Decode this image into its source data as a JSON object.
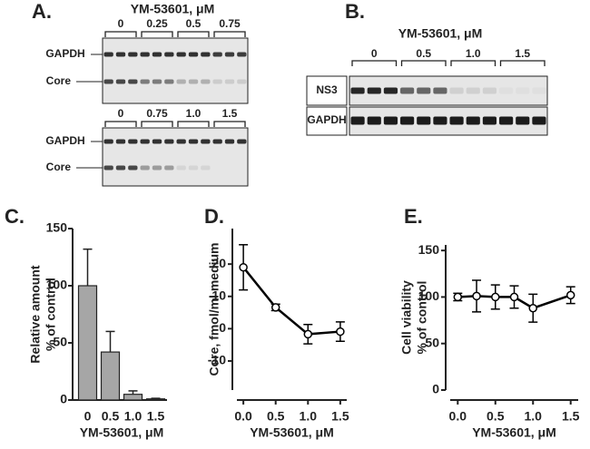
{
  "figure": {
    "A": {
      "label": "A.",
      "title": "YM-53601, μM",
      "top": {
        "doses": [
          "0",
          "0.25",
          "0.5",
          "0.75"
        ],
        "rows": [
          "GAPDH",
          "Core"
        ]
      },
      "bottom": {
        "doses": [
          "0",
          "0.75",
          "1.0",
          "1.5"
        ],
        "rows": [
          "GAPDH",
          "Core"
        ]
      }
    },
    "B": {
      "label": "B.",
      "title": "YM-53601, μM",
      "doses": [
        "0",
        "0.5",
        "1.0",
        "1.5"
      ],
      "rows": [
        "NS3",
        "GAPDH"
      ]
    }
  },
  "chart_data": [
    {
      "type": "bar",
      "panel": "C.",
      "ylabel": [
        "Relative amount",
        "% of control"
      ],
      "xlabel": "YM-53601, μM",
      "categories": [
        "0",
        "0.5",
        "1.0",
        "1.5"
      ],
      "values": [
        100,
        42,
        5,
        1
      ],
      "errors": [
        32,
        18,
        3,
        0.5
      ],
      "color": "#a6a6a6",
      "ylim": [
        0,
        150
      ],
      "yticks": [
        0,
        50,
        100,
        150
      ]
    },
    {
      "type": "line",
      "panel": "D.",
      "ylabel": "Core, fmol/ml medium",
      "xlabel": "YM-53601, μM",
      "x": [
        0,
        0.5,
        1,
        1.5
      ],
      "values": [
        19,
        6.6,
        -1.7,
        -0.9
      ],
      "errors": [
        7,
        1,
        3,
        3
      ],
      "xlim": [
        -0.1,
        1.6
      ],
      "xticks": [
        {
          "value": 0,
          "label": "0.0"
        },
        0.5,
        {
          "value": 1,
          "label": "1.0"
        },
        1.5
      ],
      "ylim": [
        -19,
        31
      ],
      "yticks": [
        -10,
        0,
        10,
        20
      ],
      "color": "#000000"
    },
    {
      "type": "line",
      "panel": "E.",
      "ylabel": [
        "Cell viability",
        "% of control"
      ],
      "xlabel": "YM-53601, μM",
      "x": [
        0,
        0.25,
        0.5,
        0.75,
        1,
        1.5
      ],
      "values": [
        100,
        101,
        100,
        100,
        88,
        102
      ],
      "errors": [
        4,
        17,
        13,
        12,
        15,
        9
      ],
      "xlim": [
        -0.1,
        1.6
      ],
      "xticks": [
        {
          "value": 0,
          "label": "0.0"
        },
        0.5,
        {
          "value": 1,
          "label": "1.0"
        },
        1.5
      ],
      "ylim": [
        0,
        156
      ],
      "yticks": [
        0,
        50,
        100,
        150
      ],
      "color": "#000000"
    }
  ]
}
